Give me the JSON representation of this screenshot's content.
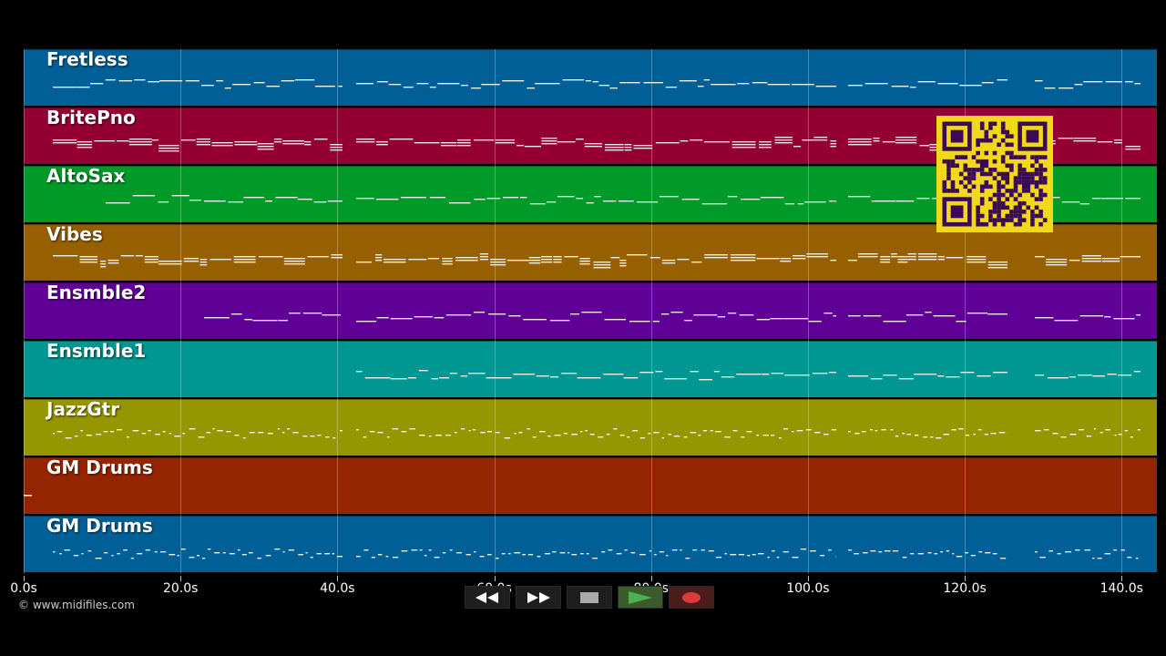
{
  "tracks": [
    {
      "name": "Fretless",
      "color": "#005f96"
    },
    {
      "name": "BritePno",
      "color": "#950032"
    },
    {
      "name": "AltoSax",
      "color": "#009a29"
    },
    {
      "name": "Vibes",
      "color": "#965f00"
    },
    {
      "name": "Ensmble2",
      "color": "#5f0096"
    },
    {
      "name": "Ensmble1",
      "color": "#009692"
    },
    {
      "name": "JazzGtr",
      "color": "#969600"
    },
    {
      "name": "GM Drums",
      "color": "#952400"
    },
    {
      "name": "GM Drums",
      "color": "#005f96"
    }
  ],
  "timeline": {
    "max_seconds": 144.5,
    "ticks": [
      "0.0s",
      "20.0s",
      "40.0s",
      "60.0s",
      "80.0s",
      "100.0s",
      "120.0s",
      "140.0s"
    ],
    "tick_values": [
      0,
      20,
      40,
      60,
      80,
      100,
      120,
      140
    ]
  },
  "copyright": "© www.midifiles.com",
  "transport": {
    "rewind_icon": "rewind-icon",
    "fast_forward_icon": "fast-forward-icon",
    "stop_icon": "stop-icon",
    "play_icon": "play-icon",
    "record_icon": "record-icon",
    "play_color": "#4caf50",
    "record_color": "#d93c3c"
  },
  "qr_code": {
    "color": "#3a0a55",
    "background": "#f2d81a"
  }
}
